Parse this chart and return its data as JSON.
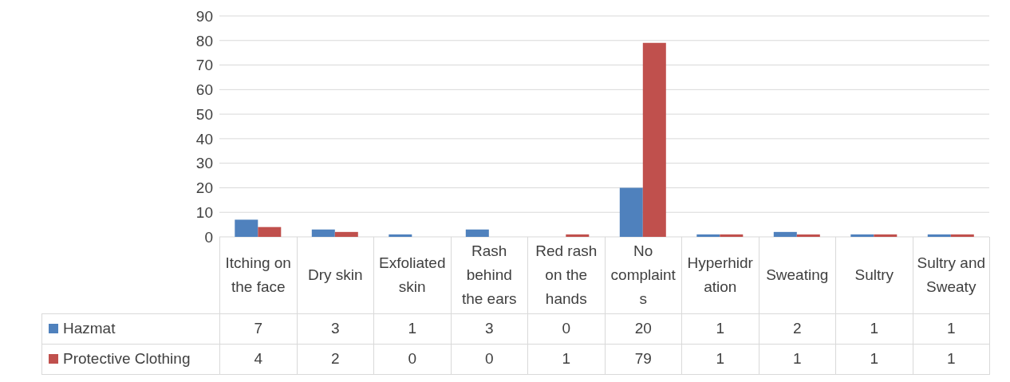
{
  "chart_data": {
    "type": "bar",
    "categories": [
      "Itching on the face",
      "Dry skin",
      "Exfoliated skin",
      "Rash behind the ears",
      "Red rash on the hands",
      "No complaints",
      "Hyperhidration",
      "Sweating",
      "Sultry",
      "Sultry and Sweaty"
    ],
    "series": [
      {
        "name": "Hazmat",
        "color": "#4f81bd",
        "values": [
          7,
          3,
          1,
          3,
          0,
          20,
          1,
          2,
          1,
          1
        ]
      },
      {
        "name": "Protective Clothing",
        "color": "#c0504d",
        "values": [
          4,
          2,
          0,
          0,
          1,
          79,
          1,
          1,
          1,
          1
        ]
      }
    ],
    "ylim": [
      0,
      90
    ],
    "yticks": [
      0,
      10,
      20,
      30,
      40,
      50,
      60,
      70,
      80,
      90
    ],
    "grid": "y",
    "legend": "bottom",
    "data_labels": true
  }
}
